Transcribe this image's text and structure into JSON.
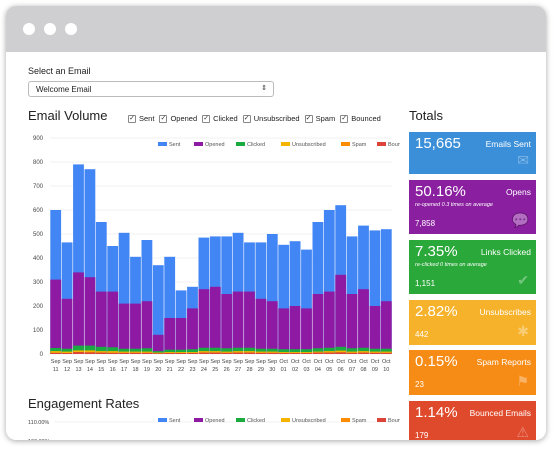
{
  "email_select": {
    "label": "Select an Email",
    "value": "Welcome Email"
  },
  "volume": {
    "title": "Email Volume",
    "checks": [
      {
        "label": "Sent",
        "checked": true
      },
      {
        "label": "Opened",
        "checked": true
      },
      {
        "label": "Clicked",
        "checked": true
      },
      {
        "label": "Unsubscribed",
        "checked": true
      },
      {
        "label": "Spam",
        "checked": true
      },
      {
        "label": "Bounced",
        "checked": true
      }
    ]
  },
  "engagement": {
    "title": "Engagement Rates",
    "y_ticks": [
      "110.00%",
      "100.00%"
    ]
  },
  "totals": {
    "title": "Totals",
    "tiles": [
      {
        "pct": "15,665",
        "name": "Emails Sent",
        "sub": "",
        "count": "",
        "color": "#3b8fd9",
        "icon": "✉",
        "icon_name": "envelope-icon"
      },
      {
        "pct": "50.16%",
        "name": "Opens",
        "sub": "re-opened 0.3 times on average",
        "count": "7,858",
        "color": "#8a1fa0",
        "icon": "💬",
        "icon_name": "speech-bubble-icon"
      },
      {
        "pct": "7.35%",
        "name": "Links Clicked",
        "sub": "re-clicked 0 times on average",
        "count": "1,151",
        "color": "#2aa83a",
        "icon": "✔",
        "icon_name": "checkmark-icon"
      },
      {
        "pct": "2.82%",
        "name": "Unsubscribes",
        "sub": "",
        "count": "442",
        "color": "#f6b22a",
        "icon": "✱",
        "icon_name": "asterisk-icon"
      },
      {
        "pct": "0.15%",
        "name": "Spam Reports",
        "sub": "",
        "count": "23",
        "color": "#f68b16",
        "icon": "⚑",
        "icon_name": "flag-icon"
      },
      {
        "pct": "1.14%",
        "name": "Bounced Emails",
        "sub": "",
        "count": "179",
        "color": "#e04a2c",
        "icon": "⚠",
        "icon_name": "warning-icon"
      }
    ]
  },
  "chart_data": [
    {
      "type": "bar",
      "title": "",
      "ylim": [
        0,
        900
      ],
      "y_ticks": [
        0,
        100,
        200,
        300,
        400,
        500,
        600,
        700,
        800,
        900
      ],
      "categories": [
        "Sep 11",
        "Sep 12",
        "Sep 13",
        "Sep 14",
        "Sep 15",
        "Sep 16",
        "Sep 17",
        "Sep 18",
        "Sep 19",
        "Sep 20",
        "Sep 21",
        "Sep 22",
        "Sep 23",
        "Sep 24",
        "Sep 25",
        "Sep 26",
        "Sep 27",
        "Sep 28",
        "Sep 29",
        "Sep 30",
        "Oct 01",
        "Oct 02",
        "Oct 03",
        "Oct 04",
        "Oct 05",
        "Oct 06",
        "Oct 07",
        "Oct 08",
        "Oct 09",
        "Oct 10"
      ],
      "series": [
        {
          "name": "Sent",
          "color": "#4285f4",
          "values": [
            600,
            465,
            790,
            770,
            550,
            450,
            505,
            405,
            475,
            370,
            405,
            265,
            280,
            485,
            490,
            490,
            505,
            465,
            465,
            500,
            455,
            470,
            435,
            550,
            600,
            620,
            490,
            535,
            515,
            520
          ]
        },
        {
          "name": "Opened",
          "color": "#8e1aa3",
          "values": [
            310,
            230,
            340,
            320,
            260,
            260,
            210,
            210,
            220,
            80,
            150,
            150,
            190,
            270,
            280,
            250,
            260,
            260,
            230,
            220,
            190,
            200,
            190,
            250,
            260,
            330,
            250,
            270,
            200,
            220
          ]
        },
        {
          "name": "Clicked",
          "color": "#1aab40",
          "values": [
            25,
            22,
            35,
            35,
            30,
            28,
            22,
            22,
            24,
            12,
            18,
            18,
            20,
            26,
            26,
            24,
            26,
            26,
            22,
            22,
            20,
            20,
            20,
            24,
            26,
            30,
            24,
            26,
            22,
            22
          ]
        },
        {
          "name": "Unsubscribed",
          "color": "#f4b400",
          "values": [
            12,
            10,
            15,
            15,
            12,
            12,
            10,
            10,
            10,
            6,
            8,
            8,
            8,
            12,
            12,
            10,
            12,
            12,
            10,
            10,
            8,
            8,
            8,
            10,
            12,
            14,
            10,
            12,
            10,
            10
          ]
        },
        {
          "name": "Spam",
          "color": "#ff8c00",
          "values": [
            1,
            1,
            2,
            1,
            1,
            1,
            1,
            1,
            1,
            0,
            1,
            1,
            1,
            1,
            1,
            1,
            1,
            1,
            1,
            1,
            1,
            1,
            1,
            1,
            1,
            1,
            1,
            1,
            1,
            1
          ]
        },
        {
          "name": "Bounced",
          "color": "#db4437",
          "values": [
            5,
            4,
            8,
            7,
            6,
            5,
            5,
            5,
            5,
            3,
            4,
            4,
            4,
            6,
            6,
            5,
            6,
            6,
            5,
            5,
            4,
            4,
            4,
            6,
            6,
            7,
            5,
            6,
            5,
            5
          ]
        }
      ]
    }
  ]
}
